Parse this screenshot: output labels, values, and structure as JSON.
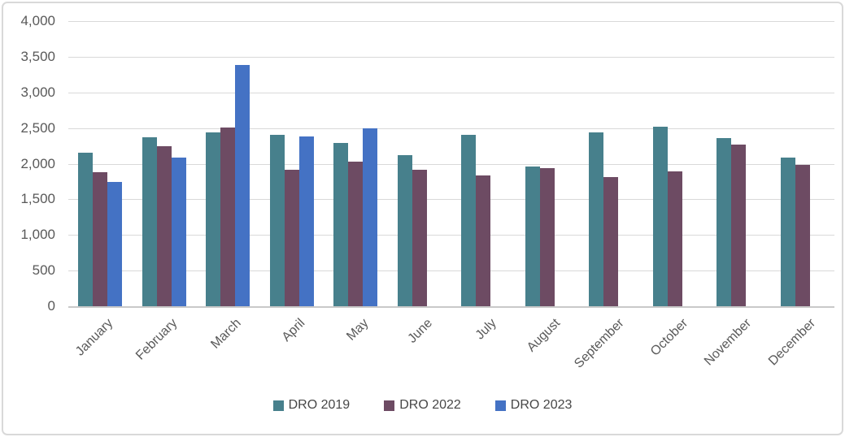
{
  "chart_data": {
    "type": "bar",
    "title": "",
    "xlabel": "",
    "ylabel": "",
    "categories": [
      "January",
      "February",
      "March",
      "April",
      "May",
      "June",
      "July",
      "August",
      "September",
      "October",
      "November",
      "December"
    ],
    "series": [
      {
        "name": "DRO 2019",
        "color": "#47808C",
        "values": [
          2150,
          2370,
          2440,
          2400,
          2290,
          2120,
          2400,
          1960,
          2440,
          2520,
          2360,
          2080
        ]
      },
      {
        "name": "DRO 2022",
        "color": "#6D4B63",
        "values": [
          1880,
          2240,
          2510,
          1920,
          2030,
          1910,
          1830,
          1940,
          1810,
          1890,
          2270,
          1980
        ]
      },
      {
        "name": "DRO 2023",
        "color": "#4472C4",
        "values": [
          1740,
          2080,
          3380,
          2380,
          2500,
          null,
          null,
          null,
          null,
          null,
          null,
          null
        ]
      }
    ],
    "ylim": [
      0,
      4000
    ],
    "ytick_step": 500,
    "ytick_labels": [
      "0",
      "500",
      "1,000",
      "1,500",
      "2,000",
      "2,500",
      "3,000",
      "3,500",
      "4,000"
    ],
    "grid": true,
    "legend_position": "bottom"
  },
  "colors": {
    "background": "#FFFFFF",
    "border": "#D9D9D9",
    "gridline": "#D9D9D9",
    "axis_line": "#C9C9C9",
    "tick_text": "#595959",
    "legend_text": "#474747"
  }
}
